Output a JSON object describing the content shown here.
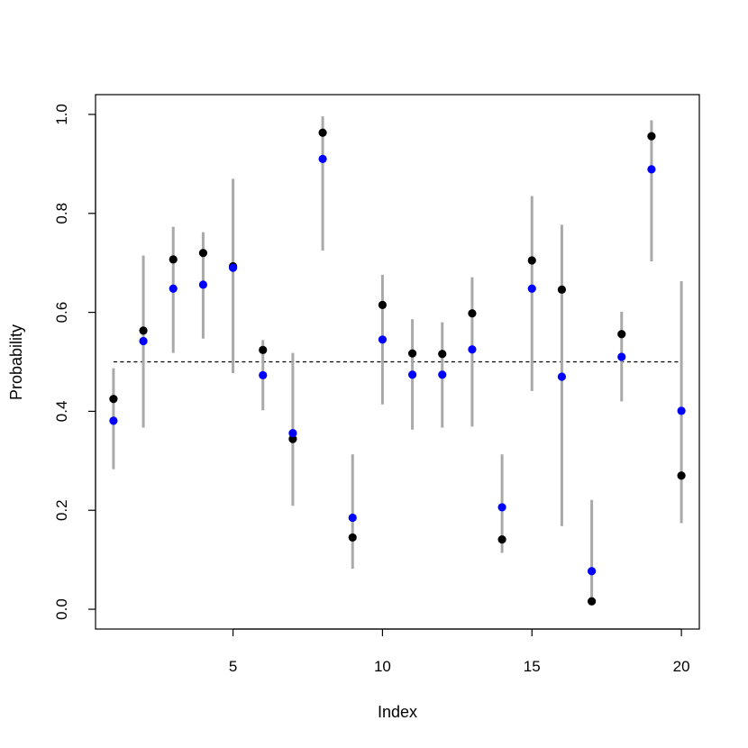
{
  "chart_data": {
    "type": "scatter",
    "title": "",
    "xlabel": "Index",
    "ylabel": "Probability",
    "xlim": [
      0.4,
      20.6
    ],
    "ylim": [
      -0.04,
      1.04
    ],
    "xticks": [
      5,
      10,
      15,
      20
    ],
    "yticks": [
      0.0,
      0.2,
      0.4,
      0.6,
      0.8,
      1.0
    ],
    "xtick_labels": [
      "5",
      "10",
      "15",
      "20"
    ],
    "ytick_labels": [
      "0.0",
      "0.2",
      "0.4",
      "0.6",
      "0.8",
      "1.0"
    ],
    "grid": false,
    "reference_line": {
      "y": 0.5,
      "x_from": 1,
      "x_to": 20,
      "style": "dashed",
      "color": "#000000"
    },
    "x": [
      1,
      2,
      3,
      4,
      5,
      6,
      7,
      8,
      9,
      10,
      11,
      12,
      13,
      14,
      15,
      16,
      17,
      18,
      19,
      20
    ],
    "intervals": {
      "color": "#a9a9a9",
      "lower": [
        0.283,
        0.367,
        0.518,
        0.547,
        0.477,
        0.402,
        0.209,
        0.725,
        0.082,
        0.414,
        0.363,
        0.367,
        0.369,
        0.114,
        0.441,
        0.168,
        0.017,
        0.42,
        0.703,
        0.174
      ],
      "upper": [
        0.487,
        0.715,
        0.773,
        0.762,
        0.87,
        0.544,
        0.518,
        0.996,
        0.313,
        0.676,
        0.586,
        0.58,
        0.671,
        0.313,
        0.835,
        0.777,
        0.221,
        0.601,
        0.988,
        0.663
      ]
    },
    "series": [
      {
        "color": "#000000",
        "values": [
          0.425,
          0.563,
          0.707,
          0.72,
          0.693,
          0.524,
          0.344,
          0.963,
          0.145,
          0.615,
          0.517,
          0.516,
          0.598,
          0.141,
          0.705,
          0.646,
          0.016,
          0.556,
          0.956,
          0.27
        ]
      },
      {
        "color": "#0000ff",
        "values": [
          0.381,
          0.542,
          0.648,
          0.656,
          0.69,
          0.473,
          0.356,
          0.91,
          0.185,
          0.545,
          0.474,
          0.474,
          0.525,
          0.206,
          0.648,
          0.47,
          0.077,
          0.51,
          0.889,
          0.401
        ]
      }
    ]
  }
}
